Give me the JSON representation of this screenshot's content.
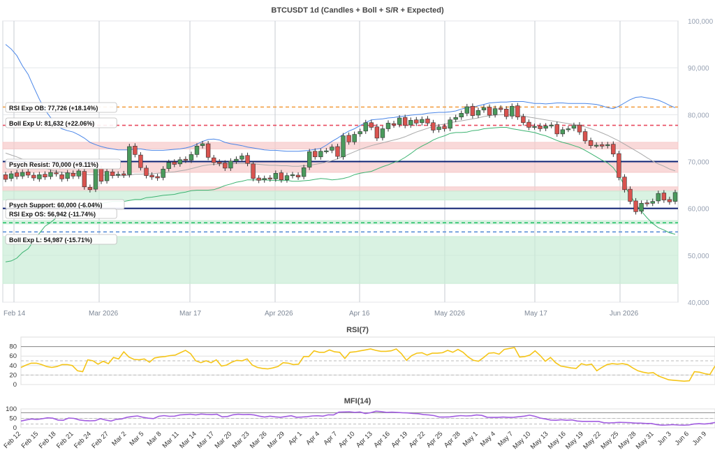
{
  "chart_data": [
    {
      "type": "candlestick",
      "title": "BTCUSDT 1d (Candles + Boll + S/R + Expected)",
      "ylim": [
        40000,
        100000
      ],
      "y_ticks": [
        "100,000",
        "90,000",
        "80,000",
        "70,000",
        "60,000",
        "50,000",
        "40,000"
      ],
      "x_ticks": [
        "Feb 14",
        "Mar 2026",
        "Mar 17",
        "Apr 2026",
        "Apr 16",
        "May 2026",
        "May 17",
        "Jun 2026"
      ],
      "candles_close": [
        66200,
        67400,
        66800,
        67700,
        67100,
        66500,
        67200,
        66700,
        67700,
        67400,
        66300,
        67600,
        66900,
        68000,
        64600,
        64000,
        68500,
        65800,
        67900,
        67000,
        67300,
        67100,
        73200,
        71500,
        68700,
        67000,
        66700,
        66500,
        68400,
        69800,
        69400,
        70400,
        70300,
        71500,
        73300,
        73800,
        70900,
        69800,
        69600,
        68600,
        70100,
        70500,
        71200,
        69600,
        66400,
        66000,
        66400,
        66300,
        67500,
        66100,
        67000,
        67200,
        66700,
        68700,
        72100,
        71000,
        72200,
        72300,
        73100,
        71100,
        75500,
        74200,
        75800,
        76400,
        78300,
        77300,
        75000,
        77000,
        78200,
        77800,
        79300,
        77700,
        78800,
        78200,
        79000,
        78200,
        76700,
        77400,
        77000,
        78900,
        79400,
        80300,
        81700,
        79800,
        80900,
        81500,
        79900,
        81300,
        81100,
        79600,
        81800,
        79500,
        78300,
        77300,
        77500,
        77000,
        77600,
        77800,
        75900,
        76800,
        77000,
        77700,
        76300,
        74400,
        73400,
        73500,
        73300,
        73600,
        71600,
        66600,
        64000,
        61500,
        59300,
        61100,
        61000,
        61500,
        63200,
        61800,
        61400,
        63400
      ],
      "candles_open": [
        67200,
        66400,
        67600,
        66900,
        67800,
        67100,
        66300,
        67300,
        66800,
        67600,
        67200,
        66400,
        67500,
        66900,
        67900,
        64500,
        64100,
        68500,
        65900,
        67800,
        67100,
        67400,
        67200,
        73300,
        71400,
        68600,
        67100,
        66800,
        66600,
        68500,
        69900,
        69500,
        70500,
        70300,
        71500,
        73400,
        73800,
        70800,
        69900,
        69700,
        68600,
        70100,
        70500,
        71300,
        69500,
        66500,
        66100,
        66500,
        66300,
        67600,
        66100,
        67000,
        67100,
        66800,
        68800,
        72200,
        71000,
        72300,
        72400,
        73200,
        71000,
        75600,
        74200,
        75900,
        76500,
        78300,
        77400,
        75100,
        77000,
        78100,
        77900,
        79400,
        77800,
        78900,
        78300,
        79100,
        78300,
        76800,
        77500,
        77100,
        79000,
        79500,
        80300,
        81800,
        79900,
        81000,
        81600,
        80000,
        81400,
        81200,
        79700,
        81900,
        79600,
        78400,
        77400,
        77600,
        77100,
        77700,
        77900,
        75900,
        76900,
        77100,
        77800,
        76400,
        74500,
        73500,
        73600,
        73400,
        73700,
        71700,
        66700,
        64100,
        61600,
        59400,
        61200,
        61100,
        61600,
        63300,
        61900,
        61500
      ],
      "bollinger_upper": [
        95000,
        94000,
        92600,
        90400,
        88600,
        85900,
        83300,
        81000,
        79400,
        77800,
        77000,
        76600,
        76300,
        75700,
        75000,
        74100,
        73600,
        73200,
        72900,
        72700,
        72500,
        72500,
        72500,
        72700,
        72700,
        72500,
        72400,
        72400,
        72400,
        72500,
        72600,
        72700,
        72900,
        73200,
        73700,
        74300,
        74700,
        74800,
        74600,
        74100,
        73800,
        73600,
        73400,
        73100,
        72900,
        72700,
        72500,
        72400,
        72400,
        72300,
        72200,
        72200,
        72200,
        72300,
        72400,
        72600,
        72800,
        73500,
        74300,
        75000,
        75800,
        76500,
        77000,
        77700,
        78300,
        78900,
        79000,
        79100,
        79300,
        79400,
        79600,
        79700,
        79900,
        80000,
        80100,
        80300,
        80400,
        80500,
        80500,
        80600,
        80800,
        81200,
        81500,
        81600,
        81900,
        82200,
        82500,
        82600,
        82700,
        82700,
        82800,
        82800,
        82800,
        82600,
        82400,
        82400,
        82300,
        82400,
        82500,
        82500,
        82400,
        82400,
        82400,
        82400,
        82300,
        82200,
        81900,
        81500,
        81300,
        81800,
        82500,
        83200,
        83700,
        83800,
        83600,
        83400,
        83100,
        82600,
        82000,
        81500
      ],
      "bollinger_middle": [
        71800,
        71400,
        71000,
        70500,
        70000,
        69500,
        69000,
        68600,
        68200,
        67900,
        67700,
        67600,
        67500,
        67400,
        67300,
        67200,
        67200,
        67100,
        67100,
        67100,
        67000,
        67000,
        67100,
        67300,
        67300,
        67400,
        67400,
        67500,
        67600,
        67700,
        67800,
        68000,
        68200,
        68500,
        68800,
        69100,
        69300,
        69400,
        69500,
        69500,
        69500,
        69600,
        69600,
        69600,
        69500,
        69400,
        69300,
        69200,
        69200,
        69100,
        69100,
        69000,
        69000,
        69100,
        69200,
        69400,
        69600,
        69900,
        70200,
        70600,
        71100,
        71600,
        72100,
        72600,
        73000,
        73400,
        73700,
        74000,
        74300,
        74600,
        74900,
        75300,
        75800,
        76300,
        76700,
        77100,
        77500,
        77800,
        78000,
        78300,
        78500,
        78700,
        78900,
        79100,
        79300,
        79600,
        79800,
        79900,
        80000,
        80000,
        79900,
        79800,
        79700,
        79500,
        79300,
        79100,
        78900,
        78700,
        78500,
        78300,
        78100,
        77900,
        77700,
        77400,
        77000,
        76600,
        76100,
        75600,
        75000,
        74400,
        73700,
        73000,
        72300,
        71600,
        70800,
        70100,
        69500,
        69000,
        68400,
        68000
      ],
      "bollinger_lower": [
        48600,
        48800,
        49400,
        50600,
        51400,
        53100,
        54700,
        56200,
        57000,
        58000,
        58400,
        58600,
        58700,
        59100,
        59600,
        60300,
        60800,
        61000,
        61300,
        61500,
        61500,
        61500,
        61700,
        61900,
        61900,
        62300,
        62400,
        62600,
        62800,
        62900,
        63000,
        63300,
        63500,
        63800,
        63900,
        63900,
        63900,
        64000,
        64400,
        64900,
        65200,
        65600,
        65800,
        66100,
        66100,
        66100,
        66100,
        66000,
        66000,
        65900,
        66000,
        65800,
        65800,
        65900,
        66000,
        66200,
        66400,
        66300,
        66100,
        66200,
        66400,
        66700,
        67200,
        67500,
        67700,
        67900,
        68400,
        68900,
        69300,
        69800,
        70200,
        70900,
        71700,
        72600,
        73300,
        73900,
        74600,
        75100,
        75500,
        76000,
        76200,
        76200,
        76300,
        76600,
        76700,
        77000,
        77100,
        77200,
        77300,
        77300,
        77000,
        76800,
        76600,
        76400,
        76200,
        75800,
        75500,
        75000,
        74500,
        74100,
        73800,
        73400,
        73000,
        72400,
        71700,
        71000,
        70300,
        69700,
        68700,
        67000,
        64900,
        62800,
        60900,
        59400,
        58000,
        56800,
        55900,
        55400,
        54800,
        54500
      ],
      "levels": [
        {
          "name": "RSI Exp OB",
          "value": 77726,
          "label": "RSI Exp OB: 77,726 (+18.14%)",
          "color": "#f39c3c",
          "style": "dashed"
        },
        {
          "name": "Boll Exp U",
          "value": 81632,
          "label": "Boll Exp U: 81,632 (+22.06%)",
          "color": "#e84a5f",
          "style": "dashed"
        },
        {
          "name": "Psych Resist",
          "value": 70000,
          "label": "Psych Resist: 70,000 (+9.11%)",
          "color": "#0b1d6f",
          "style": "solid"
        },
        {
          "name": "Psych Support",
          "value": 60000,
          "label": "Psych Support: 60,000 (-6.04%)",
          "color": "#0b1d6f",
          "style": "solid"
        },
        {
          "name": "RSI Exp OS",
          "value": 56942,
          "label": "RSI Exp OS: 56,942 (-11.74%)",
          "color": "#2bc46b",
          "style": "dashed"
        },
        {
          "name": "Boll Exp L",
          "value": 54987,
          "label": "Boll Exp L: 54,987 (-15.71%)",
          "color": "#5b8fd6",
          "style": "dashed"
        }
      ],
      "colors": {
        "up": "#4a9a5c",
        "down": "#d9534f",
        "boll_upper": "#4a86e8",
        "boll_middle": "#aaaaaa",
        "boll_lower": "#3cb371",
        "resistance_zone": "#f6c9c9",
        "support_zone": "#c9ecd5"
      }
    },
    {
      "type": "line",
      "title": "RSI(7)",
      "ylim": [
        0,
        100
      ],
      "y_ticks": [
        "80",
        "60",
        "40",
        "20",
        "0"
      ],
      "color": "#f5c518",
      "values": [
        36,
        41,
        45,
        45,
        42,
        38,
        36,
        38,
        42,
        42,
        40,
        29,
        27,
        52,
        50,
        43,
        49,
        44,
        57,
        54,
        69,
        58,
        53,
        52,
        54,
        47,
        56,
        58,
        59,
        61,
        62,
        67,
        72,
        65,
        50,
        46,
        50,
        46,
        52,
        39,
        41,
        47,
        51,
        50,
        54,
        41,
        36,
        34,
        33,
        35,
        38,
        46,
        45,
        42,
        43,
        59,
        59,
        71,
        68,
        68,
        73,
        69,
        68,
        55,
        68,
        69,
        71,
        73,
        75,
        72,
        70,
        70,
        71,
        75,
        65,
        51,
        61,
        66,
        67,
        62,
        66,
        66,
        67,
        72,
        68,
        74,
        68,
        58,
        51,
        49,
        57,
        66,
        67,
        64,
        74,
        76,
        78,
        58,
        59,
        62,
        71,
        61,
        49,
        57,
        46,
        39,
        37,
        35,
        34,
        44,
        41,
        43,
        29,
        36,
        42,
        44,
        43,
        44,
        42,
        35,
        29,
        26,
        24,
        25,
        18,
        14,
        10,
        9,
        8,
        7,
        8,
        27,
        26,
        23,
        21,
        39
      ],
      "ref_lines": [
        80,
        50,
        20
      ]
    },
    {
      "type": "line",
      "title": "MFI(14)",
      "ylim": [
        0,
        100
      ],
      "y_ticks": [
        "100",
        "50",
        "0"
      ],
      "color": "#a15ce0",
      "values": [
        36,
        42,
        47,
        44,
        48,
        53,
        51,
        41,
        40,
        52,
        50,
        42,
        38,
        37,
        38,
        48,
        41,
        36,
        45,
        47,
        56,
        60,
        63,
        56,
        51,
        49,
        61,
        65,
        61,
        62,
        68,
        70,
        72,
        68,
        73,
        71,
        70,
        72,
        58,
        60,
        69,
        72,
        70,
        71,
        68,
        62,
        57,
        62,
        58,
        56,
        60,
        64,
        56,
        57,
        59,
        63,
        64,
        62,
        69,
        68,
        83,
        84,
        85,
        82,
        84,
        76,
        80,
        88,
        86,
        82,
        83,
        82,
        80,
        79,
        76,
        75,
        70,
        68,
        65,
        57,
        57,
        58,
        62,
        65,
        63,
        64,
        68,
        66,
        56,
        55,
        55,
        57,
        55,
        56,
        59,
        62,
        67,
        61,
        52,
        47,
        41,
        40,
        43,
        40,
        42,
        36,
        34,
        34,
        34,
        34,
        27,
        26,
        27,
        29,
        28,
        27,
        25,
        25,
        23,
        23,
        17,
        14,
        15,
        17,
        15,
        14,
        15,
        20,
        22,
        20,
        23,
        28
      ],
      "ref_lines": [
        80,
        50,
        20
      ],
      "x_ticks": [
        "Feb 12",
        "Feb 15",
        "Feb 18",
        "Feb 21",
        "Feb 24",
        "Feb 27",
        "Mar 2",
        "Mar 5",
        "Mar 8",
        "Mar 11",
        "Mar 14",
        "Mar 17",
        "Mar 20",
        "Mar 23",
        "Mar 26",
        "Mar 29",
        "Apr 1",
        "Apr 4",
        "Apr 7",
        "Apr 10",
        "Apr 13",
        "Apr 16",
        "Apr 19",
        "Apr 22",
        "Apr 25",
        "Apr 28",
        "May 1",
        "May 4",
        "May 7",
        "May 10",
        "May 13",
        "May 16",
        "May 19",
        "May 22",
        "May 25",
        "May 28",
        "May 31",
        "Jun 3",
        "Jun 6",
        "Jun 9"
      ]
    }
  ]
}
